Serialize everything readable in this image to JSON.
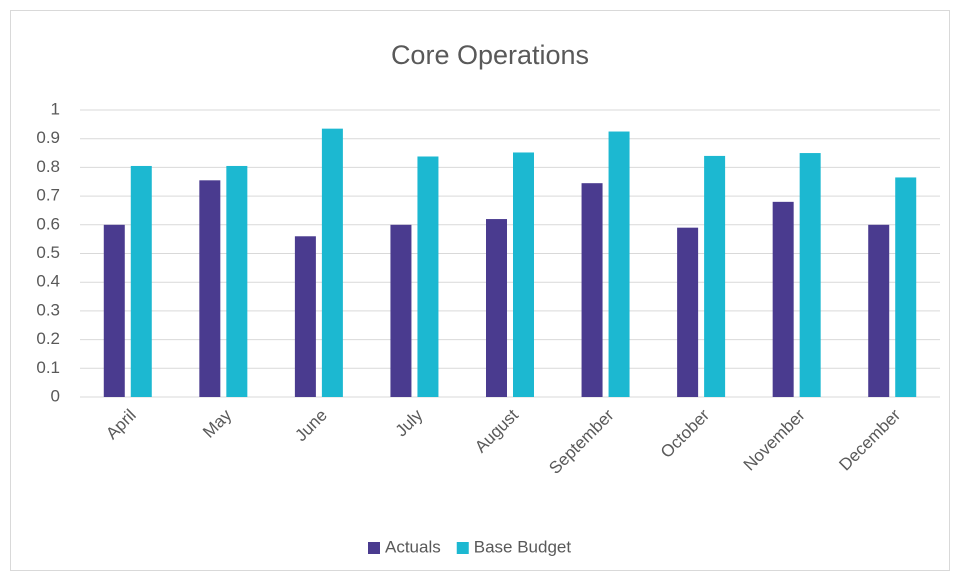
{
  "chart_data": {
    "type": "bar",
    "title": "Core Operations",
    "categories": [
      "April",
      "May",
      "June",
      "July",
      "August",
      "September",
      "October",
      "November",
      "December"
    ],
    "series": [
      {
        "name": "Actuals",
        "color": "#4a3b8f",
        "values": [
          0.6,
          0.755,
          0.56,
          0.6,
          0.62,
          0.745,
          0.59,
          0.68,
          0.6
        ]
      },
      {
        "name": "Base Budget",
        "color": "#1cb8d1",
        "values": [
          0.805,
          0.805,
          0.935,
          0.838,
          0.852,
          0.925,
          0.84,
          0.85,
          0.765
        ]
      }
    ],
    "ylim": [
      0,
      1
    ],
    "yticks": [
      0,
      0.1,
      0.2,
      0.3,
      0.4,
      0.5,
      0.6,
      0.7,
      0.8,
      0.9,
      1
    ],
    "grid": true,
    "legend": "bottom"
  }
}
